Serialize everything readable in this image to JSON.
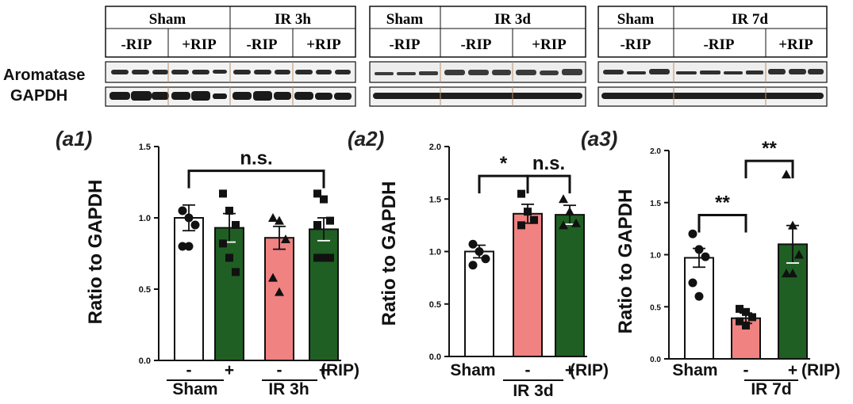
{
  "blots": {
    "row_labels": [
      "Aromatase",
      "GAPDH"
    ],
    "panels": [
      {
        "group_headers": [
          "Sham",
          "IR 3h"
        ],
        "subheaders": [
          "-RIP",
          "+RIP",
          "-RIP",
          "+RIP"
        ]
      },
      {
        "group_headers": [
          "Sham",
          "IR 3d"
        ],
        "subheaders": [
          "-RIP",
          "-RIP",
          "+RIP"
        ]
      },
      {
        "group_headers": [
          "Sham",
          "IR 7d"
        ],
        "subheaders": [
          "-RIP",
          "-RIP",
          "+RIP"
        ]
      }
    ]
  },
  "colors": {
    "sham": "#ffffff",
    "ir_minus": "#f08282",
    "ir_plus": "#1f5f23",
    "ink": "#111111"
  },
  "chart_data": [
    {
      "type": "bar",
      "panel_label": "(a1)",
      "ylabel": "Ratio to GAPDH",
      "ylim": [
        0,
        1.5
      ],
      "yticks": [
        "0.0",
        "0.5",
        "1.0",
        "1.5"
      ],
      "categories": [
        "-",
        "+",
        "-",
        "+"
      ],
      "group_labels": [
        "Sham",
        "IR 3h"
      ],
      "suffix": "(RIP)",
      "values": [
        1.0,
        0.93,
        0.86,
        0.92
      ],
      "errors": [
        0.09,
        0.1,
        0.08,
        0.08
      ],
      "bar_colors": [
        "sham",
        "ir_plus",
        "ir_minus",
        "ir_plus"
      ],
      "points": [
        [
          1.05,
          1.0,
          0.95,
          0.8,
          0.8
        ],
        [
          1.17,
          1.05,
          0.95,
          0.82,
          0.72,
          0.62
        ],
        [
          1.0,
          0.98,
          0.85,
          0.58,
          0.48
        ],
        [
          1.17,
          1.13,
          0.98,
          0.95,
          0.72,
          0.72,
          0.72
        ]
      ],
      "markers": [
        "circle",
        "square",
        "triangle",
        "square"
      ],
      "annotations": [
        {
          "from": 0,
          "to": 3,
          "label": "n.s.",
          "y": 1.33
        }
      ]
    },
    {
      "type": "bar",
      "panel_label": "(a2)",
      "ylabel": "Ratio to GAPDH",
      "ylim": [
        0,
        2.0
      ],
      "yticks": [
        "0.0",
        "0.5",
        "1.0",
        "1.5",
        "2.0"
      ],
      "categories": [
        "Sham",
        "-",
        "+"
      ],
      "group_labels": [
        "IR 3d"
      ],
      "suffix": "(RIP)",
      "values": [
        1.0,
        1.36,
        1.35
      ],
      "errors": [
        0.06,
        0.09,
        0.09
      ],
      "bar_colors": [
        "sham",
        "ir_minus",
        "ir_plus"
      ],
      "points": [
        [
          1.07,
          1.0,
          0.93,
          0.87
        ],
        [
          1.55,
          1.38,
          1.3,
          1.25
        ],
        [
          1.5,
          1.38,
          1.27,
          1.25
        ]
      ],
      "markers": [
        "circle",
        "square",
        "triangle"
      ],
      "annotations": [
        {
          "from": 0,
          "to": 1,
          "label": "*",
          "y": 1.72
        },
        {
          "from": 1,
          "to": 2,
          "label": "n.s.",
          "y": 1.72
        }
      ]
    },
    {
      "type": "bar",
      "panel_label": "(a3)",
      "ylabel": "Ratio to GAPDH",
      "ylim": [
        0,
        2.0
      ],
      "yticks": [
        "0.0",
        "0.5",
        "1.0",
        "1.5",
        "2.0"
      ],
      "categories": [
        "Sham",
        "-",
        "+"
      ],
      "group_labels": [
        "IR 7d"
      ],
      "suffix": "(RIP)",
      "values": [
        0.97,
        0.39,
        1.1
      ],
      "errors": [
        0.09,
        0.05,
        0.18
      ],
      "bar_colors": [
        "sham",
        "ir_minus",
        "ir_plus"
      ],
      "points": [
        [
          1.2,
          1.05,
          0.98,
          0.73,
          0.6
        ],
        [
          0.48,
          0.45,
          0.4,
          0.36,
          0.32
        ],
        [
          1.77,
          1.28,
          1.0,
          0.82,
          0.82
        ]
      ],
      "markers": [
        "circle",
        "square",
        "triangle"
      ],
      "annotations": [
        {
          "from": 0,
          "to": 1,
          "label": "**",
          "y": 1.38
        },
        {
          "from": 1,
          "to": 2,
          "label": "**",
          "y": 1.9
        }
      ]
    }
  ]
}
